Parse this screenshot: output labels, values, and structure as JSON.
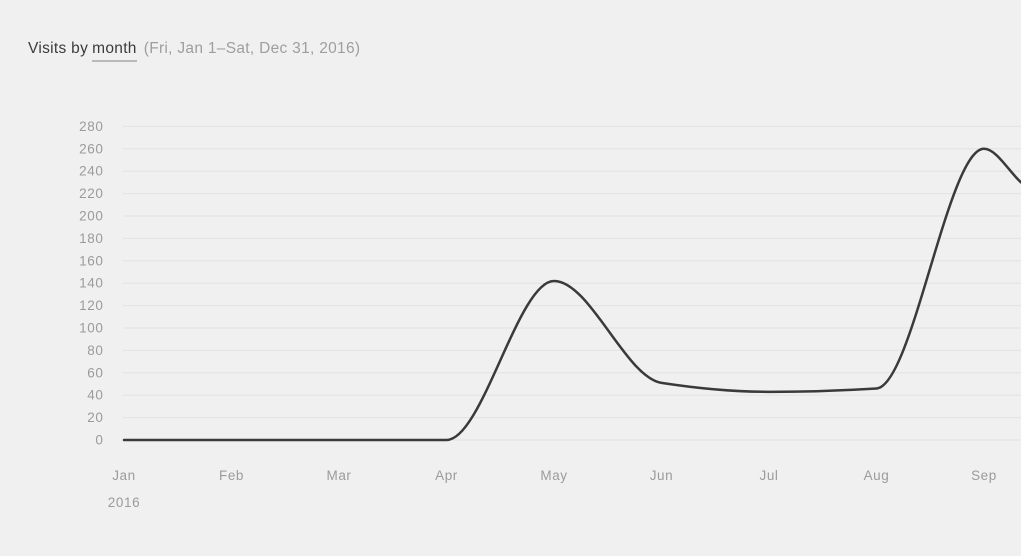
{
  "page": {
    "background_color": "#f0f0f0"
  },
  "header": {
    "title_prefix": "Visits by",
    "dimension": "month",
    "date_range": "(Fri, Jan 1–Sat, Dec 31, 2016)"
  },
  "chart_data": {
    "type": "line",
    "title": "Visits by month",
    "subtitle": "Fri, Jan 1–Sat, Dec 31, 2016",
    "categories": [
      "Jan",
      "Feb",
      "Mar",
      "Apr",
      "May",
      "Jun",
      "Jul",
      "Aug",
      "Sep"
    ],
    "values": [
      0,
      0,
      0,
      0,
      142,
      51,
      43,
      46,
      260
    ],
    "x_sub_label": {
      "month_index": 0,
      "label": "2016"
    },
    "clipped_at_right_edge": true,
    "right_edge_exit_value": 230,
    "ylim": [
      0,
      280
    ],
    "y_ticks": [
      0,
      20,
      40,
      60,
      80,
      100,
      120,
      140,
      160,
      180,
      200,
      220,
      240,
      260,
      280
    ],
    "xlabel": "",
    "ylabel": "",
    "grid": "horizontal",
    "legend": "none",
    "smoothing": "monotone-cubic",
    "colors": {
      "line": "#3a3a3a",
      "grid": "#e2e2e2",
      "axis_labels": "#9b9b9b"
    }
  }
}
